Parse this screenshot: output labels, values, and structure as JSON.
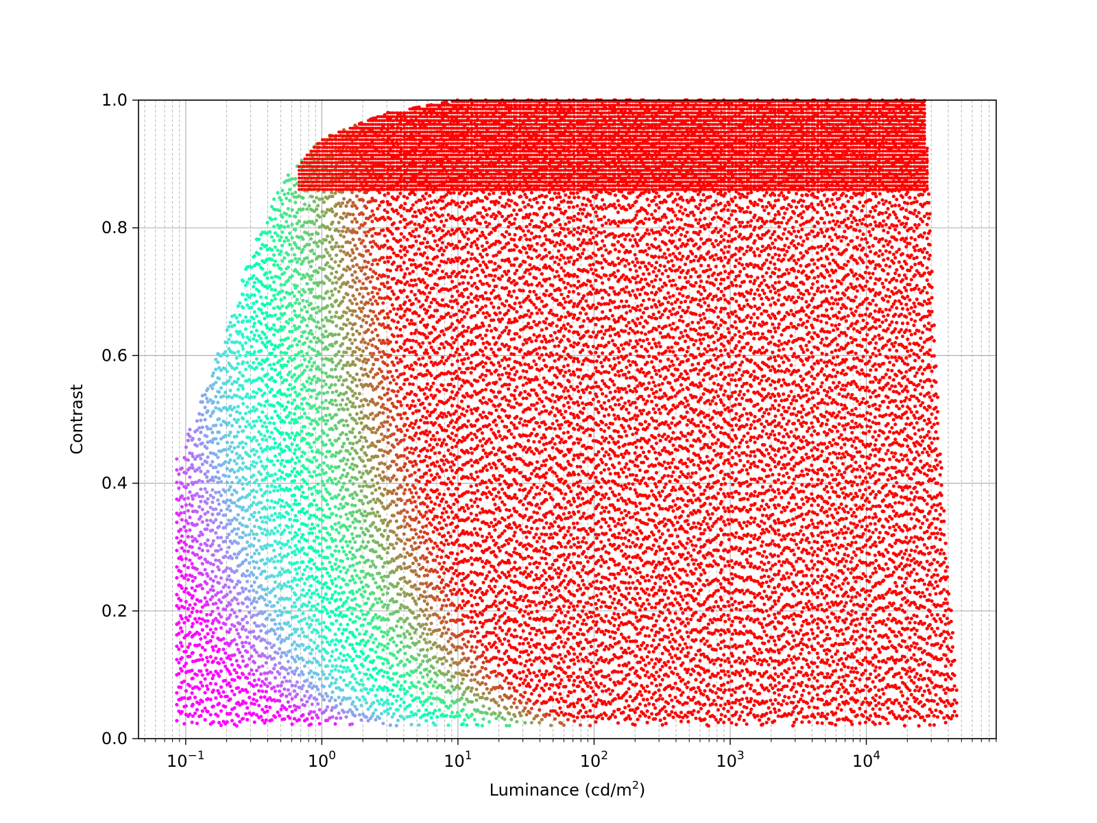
{
  "chart_data": {
    "type": "scatter",
    "title": "",
    "xlabel": {
      "base": "Luminance (cd/m",
      "sup": "2",
      "close": ")"
    },
    "ylabel": "Contrast",
    "x_scale": "log",
    "xlim": [
      0.045,
      90000
    ],
    "ylim": [
      0.0,
      1.0
    ],
    "x_ticks": [
      {
        "base": "10",
        "exp": "−1",
        "value": 0.1
      },
      {
        "base": "10",
        "exp": "0",
        "value": 1
      },
      {
        "base": "10",
        "exp": "1",
        "value": 10
      },
      {
        "base": "10",
        "exp": "2",
        "value": 100
      },
      {
        "base": "10",
        "exp": "3",
        "value": 1000
      },
      {
        "base": "10",
        "exp": "4",
        "value": 10000
      }
    ],
    "y_ticks": [
      {
        "label": "0.0",
        "value": 0.0
      },
      {
        "label": "0.2",
        "value": 0.2
      },
      {
        "label": "0.4",
        "value": 0.4
      },
      {
        "label": "0.6",
        "value": 0.6
      },
      {
        "label": "0.8",
        "value": 0.8
      },
      {
        "label": "1.0",
        "value": 1.0
      }
    ],
    "grid": true,
    "colormap": "rainbow",
    "x_data_range": [
      0.085,
      47000
    ],
    "y_data_range": [
      0.02,
      1.0
    ],
    "upper_envelope": [
      {
        "x": 0.09,
        "y": 0.44
      },
      {
        "x": 0.2,
        "y": 0.64
      },
      {
        "x": 0.3,
        "y": 0.76
      },
      {
        "x": 0.5,
        "y": 0.87
      },
      {
        "x": 1,
        "y": 0.94
      },
      {
        "x": 3,
        "y": 0.98
      },
      {
        "x": 10,
        "y": 1.0
      },
      {
        "x": 27000,
        "y": 1.0
      },
      {
        "x": 35000,
        "y": 0.45
      },
      {
        "x": 47000,
        "y": 0.05
      }
    ]
  }
}
